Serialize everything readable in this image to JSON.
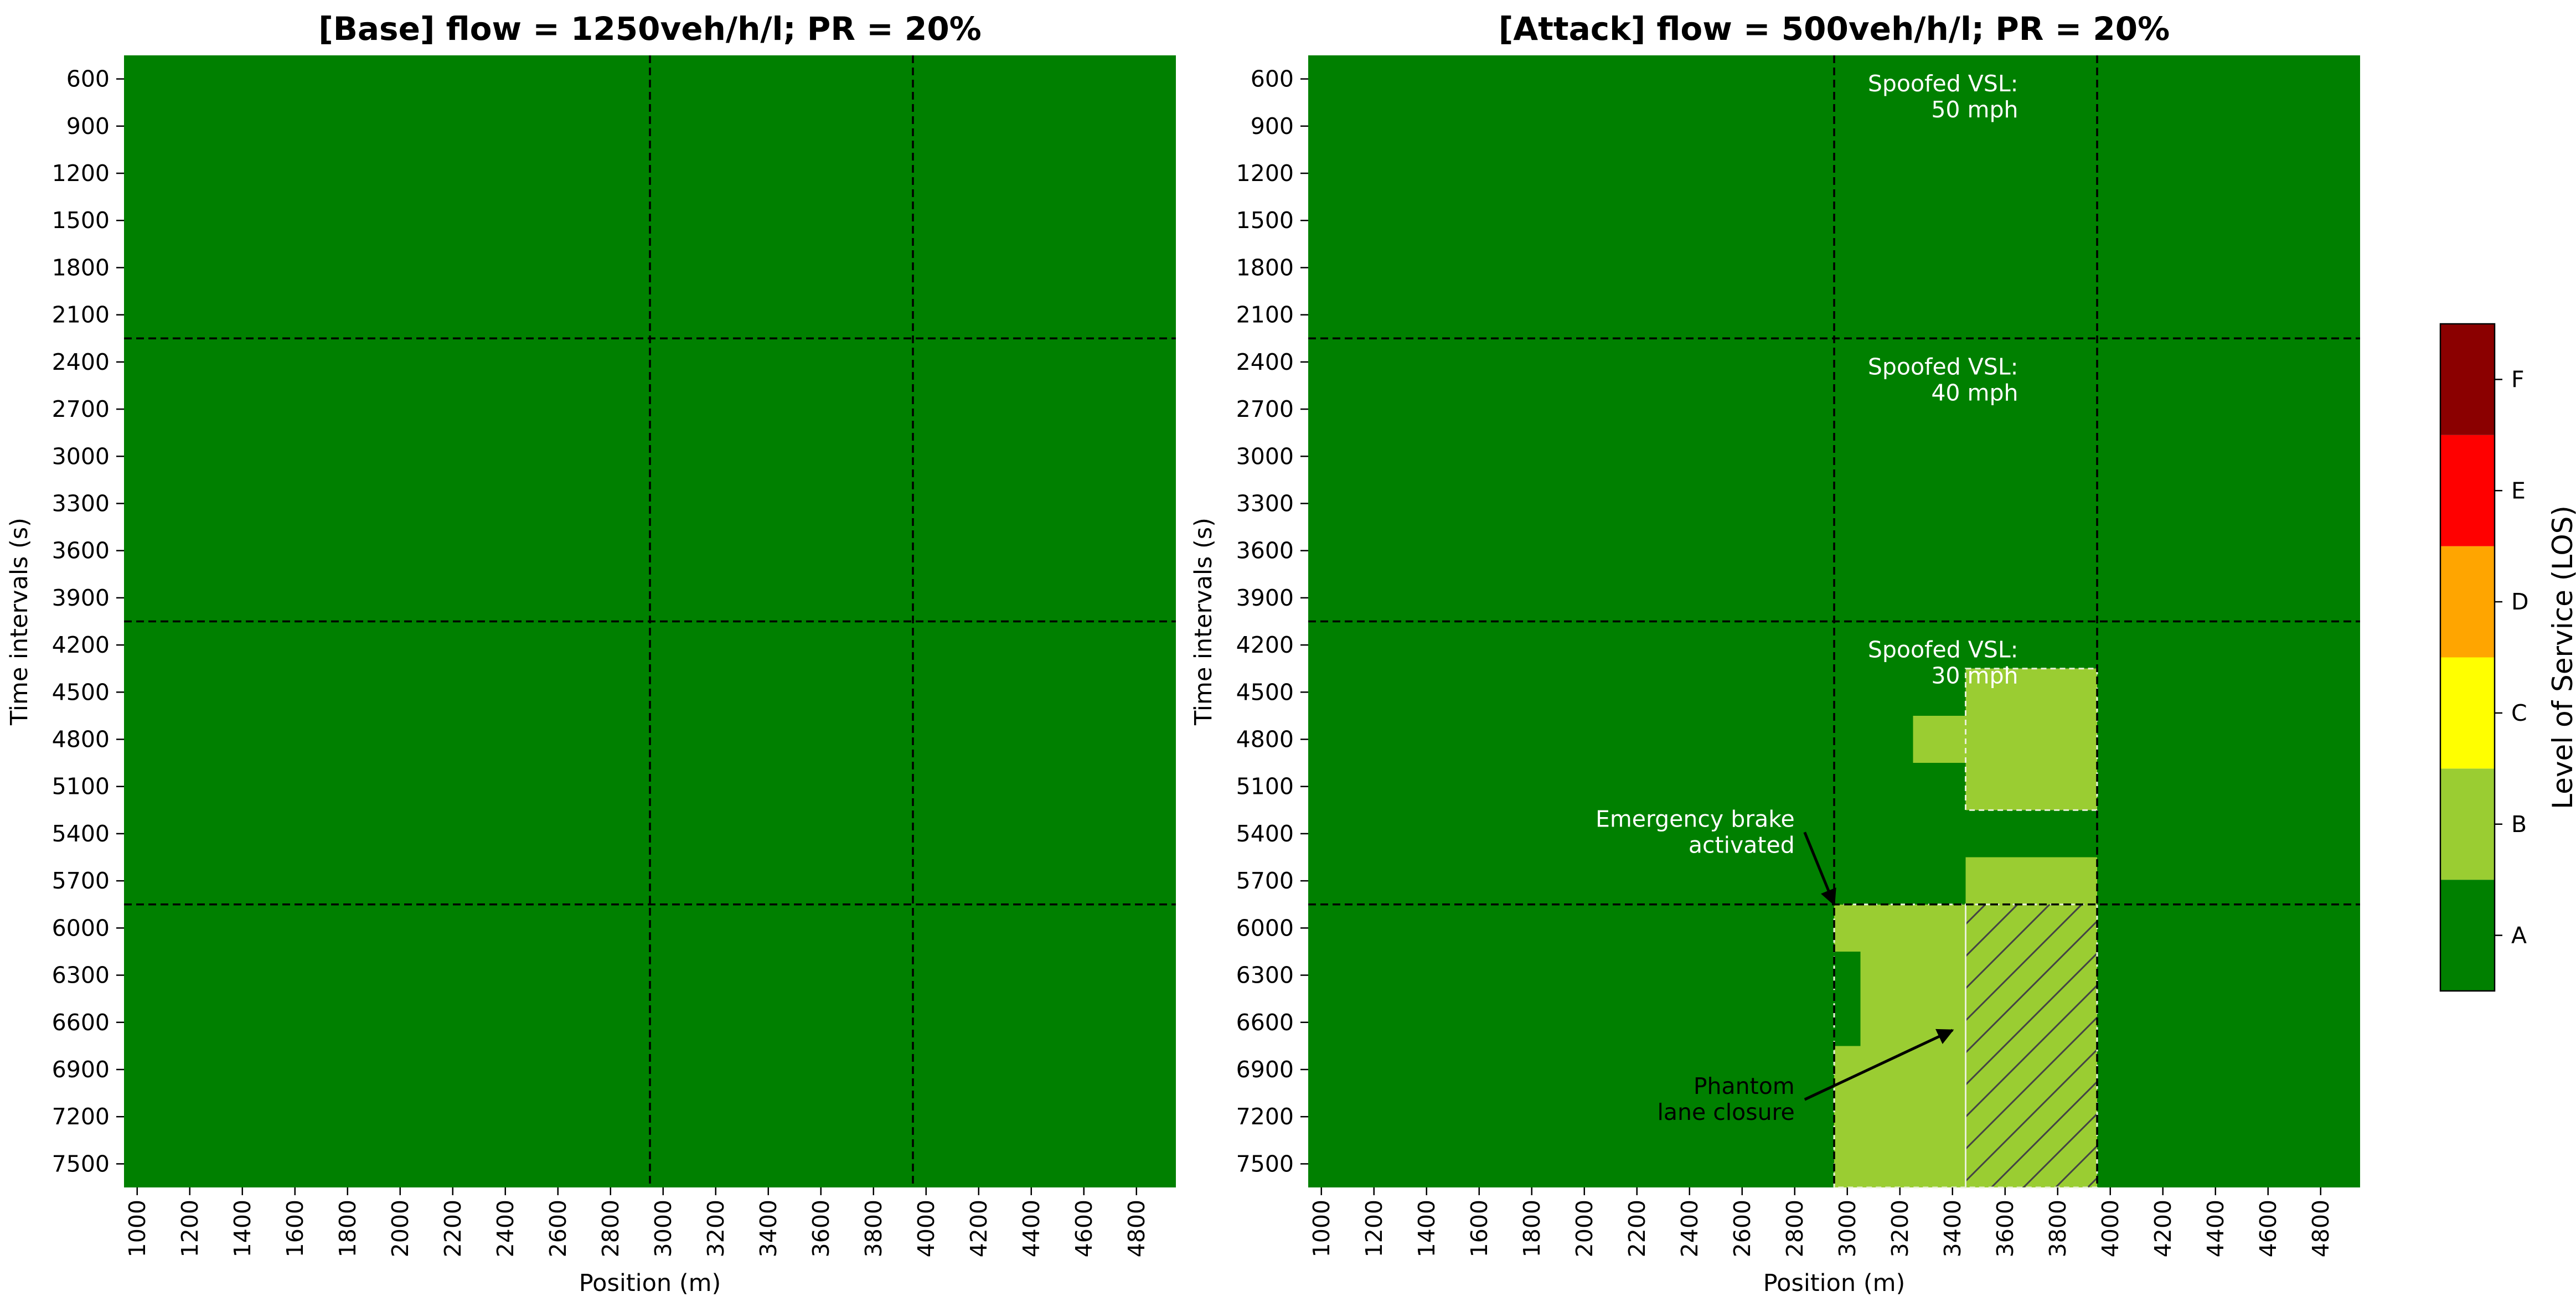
{
  "chart_data": [
    {
      "type": "heatmap",
      "title": "[Base] flow = 1250veh/h/l; PR = 20%",
      "xlabel": "Position (m)",
      "ylabel": "Time intervals (s)",
      "x_tick_labels": [
        "1000",
        "1200",
        "1400",
        "1600",
        "1800",
        "2000",
        "2200",
        "2400",
        "2600",
        "2800",
        "3000",
        "3200",
        "3400",
        "3600",
        "3800",
        "4000",
        "4200",
        "4400",
        "4600",
        "4800"
      ],
      "y_tick_labels": [
        "600",
        "900",
        "1200",
        "1500",
        "1800",
        "2100",
        "2400",
        "2700",
        "3000",
        "3300",
        "3600",
        "3900",
        "4200",
        "4500",
        "4800",
        "5100",
        "5400",
        "5700",
        "6000",
        "6300",
        "6600",
        "6900",
        "7200",
        "7500"
      ],
      "x_range": [
        1000,
        5000
      ],
      "y_range": [
        450,
        7650
      ],
      "x_cell_width": 100,
      "y_cell_height": 150,
      "background_level": "A",
      "cells": [],
      "vlines_x": [
        3000,
        4000
      ],
      "hlines_y": [
        2250,
        4050,
        5850
      ],
      "annotations": []
    },
    {
      "type": "heatmap",
      "title": "[Attack] flow = 500veh/h/l; PR = 20%",
      "xlabel": "Position (m)",
      "ylabel": "Time intervals (s)",
      "x_tick_labels": [
        "1000",
        "1200",
        "1400",
        "1600",
        "1800",
        "2000",
        "2200",
        "2400",
        "2600",
        "2800",
        "3000",
        "3200",
        "3400",
        "3600",
        "3800",
        "4000",
        "4200",
        "4400",
        "4600",
        "4800"
      ],
      "y_tick_labels": [
        "600",
        "900",
        "1200",
        "1500",
        "1800",
        "2100",
        "2400",
        "2700",
        "3000",
        "3300",
        "3600",
        "3900",
        "4200",
        "4500",
        "4800",
        "5100",
        "5400",
        "5700",
        "6000",
        "6300",
        "6600",
        "6900",
        "7200",
        "7500"
      ],
      "x_range": [
        1000,
        5000
      ],
      "y_range": [
        450,
        7650
      ],
      "x_cell_width": 100,
      "y_cell_height": 150,
      "background_level": "A",
      "cells": [
        {
          "x0": 3500,
          "x1": 4000,
          "y0": 4350,
          "y1": 5250,
          "level": "B"
        },
        {
          "x0": 3300,
          "x1": 3500,
          "y0": 4650,
          "y1": 4950,
          "level": "B"
        },
        {
          "x0": 3500,
          "x1": 4000,
          "y0": 5550,
          "y1": 5850,
          "level": "B"
        },
        {
          "x0": 3000,
          "x1": 3500,
          "y0": 5850,
          "y1": 6150,
          "level": "B"
        },
        {
          "x0": 3100,
          "x1": 3500,
          "y0": 6150,
          "y1": 6750,
          "level": "B"
        },
        {
          "x0": 3000,
          "x1": 3500,
          "y0": 6750,
          "y1": 7650,
          "level": "B"
        },
        {
          "x0": 3500,
          "x1": 4000,
          "y0": 5850,
          "y1": 7650,
          "level": "B"
        }
      ],
      "hatched_region": {
        "x0": 3500,
        "x1": 4000,
        "y0": 5850,
        "y1": 7650
      },
      "dashed_outlines": [
        {
          "x0": 3500,
          "x1": 4000,
          "y0": 4350,
          "y1": 5250
        },
        {
          "x0": 3000,
          "x1": 3500,
          "y0": 5850,
          "y1": 7650
        },
        {
          "x0": 3500,
          "x1": 4000,
          "y0": 5850,
          "y1": 7650
        }
      ],
      "vlines_x": [
        3000,
        4000
      ],
      "hlines_y": [
        2250,
        4050,
        5850
      ],
      "annotations": [
        {
          "lines": [
            "Spoofed VSL:",
            "50 mph"
          ],
          "x": 3700,
          "y": 450,
          "color": "white"
        },
        {
          "lines": [
            "Spoofed VSL:",
            "40 mph"
          ],
          "x": 3700,
          "y": 2250,
          "color": "white"
        },
        {
          "lines": [
            "Spoofed VSL:",
            "30 mph"
          ],
          "x": 3700,
          "y": 4050,
          "color": "white"
        },
        {
          "lines": [
            "Emergency brake",
            "activated"
          ],
          "x": 2850,
          "y": 5250,
          "color": "white",
          "arrow_to": [
            3000,
            5850
          ]
        },
        {
          "lines": [
            "Phantom",
            "lane closure"
          ],
          "x": 2850,
          "y": 6950,
          "color": "black",
          "arrow_to": [
            3450,
            6650
          ]
        }
      ]
    }
  ],
  "colorbar": {
    "label": "Level of Service (LOS)",
    "levels": [
      "A",
      "B",
      "C",
      "D",
      "E",
      "F"
    ],
    "colors": {
      "A": "#008000",
      "B": "#9acd32",
      "C": "#ffff00",
      "D": "#ffa500",
      "E": "#ff0000",
      "F": "#8b0000"
    }
  }
}
